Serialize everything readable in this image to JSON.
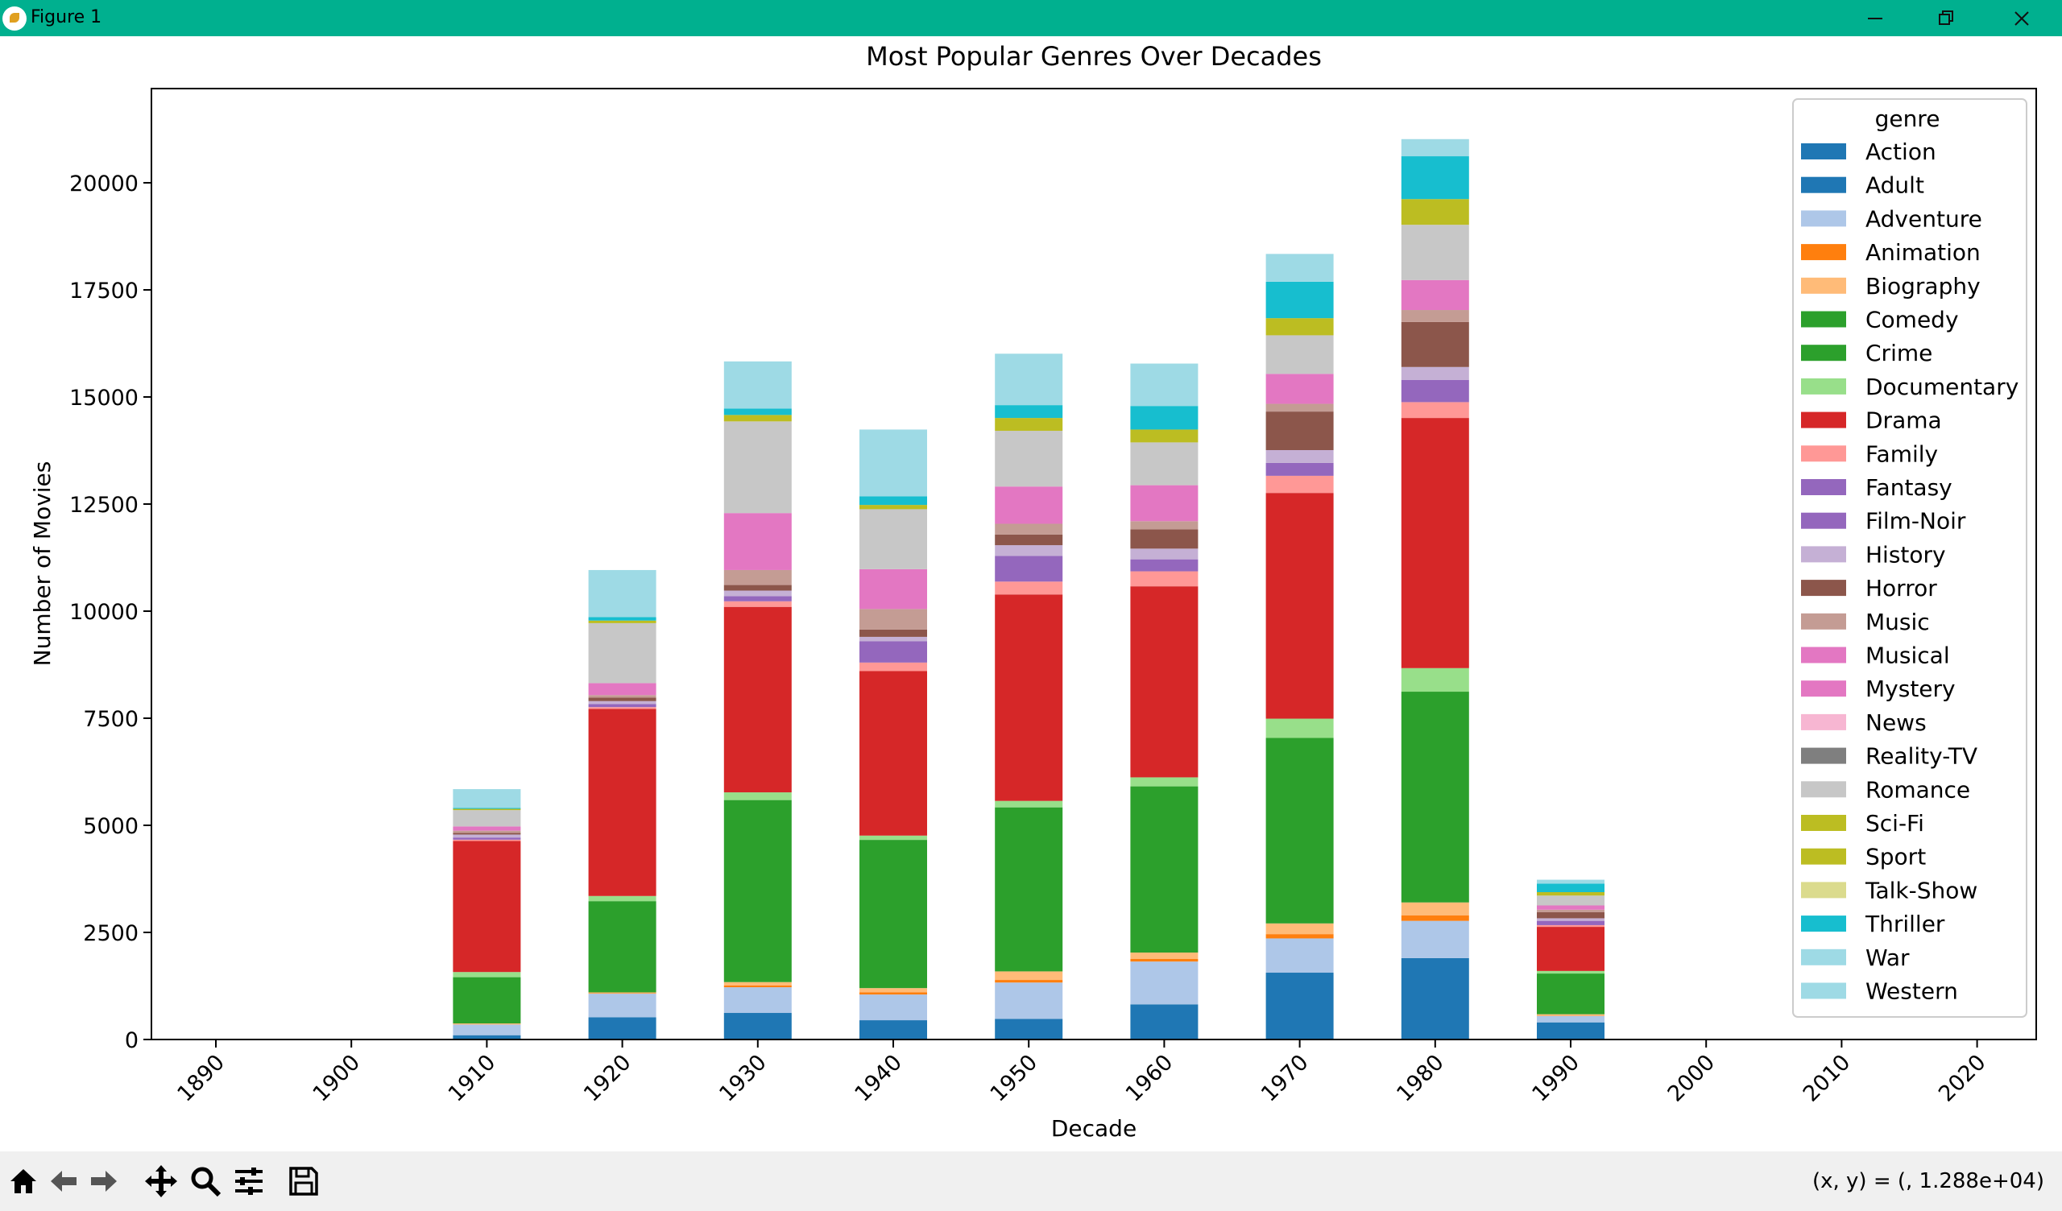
{
  "window": {
    "title": "Figure 1"
  },
  "toolbar": {
    "coord_readout": "(x, y) = (, 1.288e+04)"
  },
  "chart_data": {
    "type": "bar",
    "stacked": true,
    "title": "Most Popular Genres Over Decades",
    "xlabel": "Decade",
    "ylabel": "Number of Movies",
    "ylim": [
      0,
      22200
    ],
    "yticks": [
      0,
      2500,
      5000,
      7500,
      10000,
      12500,
      15000,
      17500,
      20000
    ],
    "ytick_labels": [
      "0",
      "2500",
      "5000",
      "7500",
      "10000",
      "12500",
      "15000",
      "17500",
      "20000"
    ],
    "categories": [
      "1890",
      "1900",
      "1910",
      "1920",
      "1930",
      "1940",
      "1950",
      "1960",
      "1970",
      "1980",
      "1990",
      "2000",
      "2010",
      "2020"
    ],
    "legend_title": "genre",
    "legend_position": "upper right",
    "series": [
      {
        "name": "Action",
        "color": "#1f77b4",
        "values": [
          0,
          0,
          100,
          520,
          620,
          450,
          480,
          820,
          1560,
          1900,
          400,
          0,
          0,
          0
        ]
      },
      {
        "name": "Adult",
        "color": "#1f77b4",
        "values": [
          0,
          0,
          0,
          0,
          0,
          0,
          0,
          0,
          0,
          0,
          0,
          0,
          0,
          0
        ]
      },
      {
        "name": "Adventure",
        "color": "#aec7e8",
        "values": [
          0,
          0,
          250,
          550,
          600,
          600,
          850,
          1000,
          800,
          870,
          150,
          0,
          0,
          0
        ]
      },
      {
        "name": "Animation",
        "color": "#ff7f0e",
        "values": [
          0,
          0,
          5,
          10,
          40,
          50,
          60,
          60,
          100,
          130,
          10,
          0,
          0,
          0
        ]
      },
      {
        "name": "Biography",
        "color": "#ffbb78",
        "values": [
          0,
          0,
          20,
          20,
          80,
          100,
          200,
          150,
          250,
          300,
          30,
          0,
          0,
          0
        ]
      },
      {
        "name": "Comedy",
        "color": "#2ca02c",
        "values": [
          0,
          0,
          0,
          0,
          0,
          0,
          0,
          0,
          0,
          0,
          0,
          0,
          0,
          0
        ]
      },
      {
        "name": "Crime",
        "color": "#2ca02c",
        "values": [
          0,
          0,
          1080,
          2130,
          4250,
          3460,
          3830,
          3880,
          4330,
          4920,
          950,
          0,
          0,
          0
        ]
      },
      {
        "name": "Documentary",
        "color": "#98df8a",
        "values": [
          0,
          0,
          120,
          120,
          180,
          100,
          150,
          210,
          450,
          550,
          60,
          0,
          0,
          0
        ]
      },
      {
        "name": "Drama",
        "color": "#d62728",
        "values": [
          0,
          0,
          3060,
          4370,
          4330,
          3840,
          4820,
          4460,
          5270,
          5840,
          1030,
          0,
          0,
          0
        ]
      },
      {
        "name": "Family",
        "color": "#ff9896",
        "values": [
          0,
          0,
          30,
          40,
          130,
          200,
          300,
          350,
          400,
          370,
          40,
          0,
          0,
          0
        ]
      },
      {
        "name": "Fantasy",
        "color": "#9467bd",
        "values": [
          0,
          0,
          0,
          0,
          0,
          0,
          0,
          0,
          0,
          0,
          0,
          0,
          0,
          0
        ]
      },
      {
        "name": "Film-Noir",
        "color": "#9467bd",
        "values": [
          0,
          0,
          50,
          70,
          120,
          500,
          600,
          280,
          300,
          520,
          100,
          0,
          0,
          0
        ]
      },
      {
        "name": "History",
        "color": "#c5b0d5",
        "values": [
          0,
          0,
          70,
          70,
          130,
          100,
          250,
          250,
          300,
          300,
          60,
          0,
          0,
          0
        ]
      },
      {
        "name": "Horror",
        "color": "#8c564b",
        "values": [
          0,
          0,
          40,
          80,
          130,
          170,
          250,
          450,
          900,
          1050,
          140,
          0,
          0,
          0
        ]
      },
      {
        "name": "Music",
        "color": "#c49c94",
        "values": [
          0,
          0,
          50,
          60,
          350,
          480,
          250,
          190,
          180,
          280,
          60,
          0,
          0,
          0
        ]
      },
      {
        "name": "Musical",
        "color": "#e377c2",
        "values": [
          0,
          0,
          0,
          0,
          0,
          0,
          0,
          0,
          0,
          0,
          0,
          0,
          0,
          0
        ]
      },
      {
        "name": "Mystery",
        "color": "#e377c2",
        "values": [
          0,
          0,
          100,
          280,
          1330,
          930,
          870,
          840,
          700,
          700,
          100,
          0,
          0,
          0
        ]
      },
      {
        "name": "News",
        "color": "#f7b6d2",
        "values": [
          0,
          0,
          0,
          0,
          0,
          0,
          0,
          0,
          0,
          0,
          0,
          0,
          0,
          0
        ]
      },
      {
        "name": "Reality-TV",
        "color": "#7f7f7f",
        "values": [
          0,
          0,
          0,
          0,
          0,
          0,
          0,
          0,
          0,
          0,
          0,
          0,
          0,
          0
        ]
      },
      {
        "name": "Romance",
        "color": "#c7c7c7",
        "values": [
          0,
          0,
          380,
          1400,
          2140,
          1400,
          1300,
          1000,
          900,
          1290,
          230,
          0,
          0,
          0
        ]
      },
      {
        "name": "Sci-Fi",
        "color": "#bcbd22",
        "values": [
          0,
          0,
          0,
          0,
          0,
          0,
          0,
          0,
          0,
          0,
          0,
          0,
          0,
          0
        ]
      },
      {
        "name": "Sport",
        "color": "#bcbd22",
        "values": [
          0,
          0,
          30,
          60,
          150,
          100,
          300,
          300,
          400,
          600,
          80,
          0,
          0,
          0
        ]
      },
      {
        "name": "Talk-Show",
        "color": "#dbdb8d",
        "values": [
          0,
          0,
          0,
          0,
          0,
          0,
          0,
          0,
          0,
          0,
          0,
          0,
          0,
          0
        ]
      },
      {
        "name": "Thriller",
        "color": "#17becf",
        "values": [
          0,
          0,
          20,
          80,
          150,
          200,
          300,
          550,
          850,
          1000,
          200,
          0,
          0,
          0
        ]
      },
      {
        "name": "War",
        "color": "#9edae5",
        "values": [
          0,
          0,
          0,
          0,
          0,
          0,
          0,
          0,
          0,
          0,
          0,
          0,
          0,
          0
        ]
      },
      {
        "name": "Western",
        "color": "#9edae5",
        "values": [
          0,
          0,
          440,
          1100,
          1100,
          1560,
          1200,
          990,
          650,
          400,
          90,
          0,
          0,
          0
        ]
      }
    ]
  }
}
